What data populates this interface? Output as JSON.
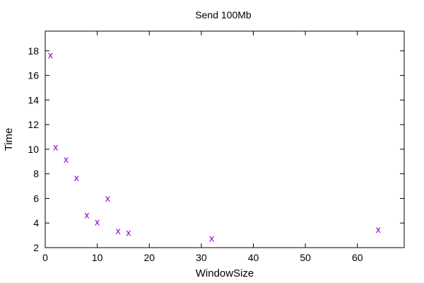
{
  "chart_data": {
    "type": "scatter",
    "title": "Send 100Mb",
    "xlabel": "WindowSize",
    "ylabel": "Time",
    "xlim": [
      0,
      69
    ],
    "ylim": [
      2,
      19.6
    ],
    "xticks": [
      0,
      10,
      20,
      30,
      40,
      50,
      60
    ],
    "yticks": [
      2,
      4,
      6,
      8,
      10,
      12,
      14,
      16,
      18
    ],
    "grid": false,
    "marker": "x",
    "series": [
      {
        "color": "#9400d3",
        "points": [
          {
            "x": 1,
            "y": 17.6
          },
          {
            "x": 2,
            "y": 10.1
          },
          {
            "x": 4,
            "y": 9.1
          },
          {
            "x": 6,
            "y": 7.6
          },
          {
            "x": 8,
            "y": 4.6
          },
          {
            "x": 10,
            "y": 4.0
          },
          {
            "x": 12,
            "y": 5.95
          },
          {
            "x": 14,
            "y": 3.3
          },
          {
            "x": 16,
            "y": 3.15
          },
          {
            "x": 32,
            "y": 2.7
          },
          {
            "x": 64,
            "y": 3.4
          }
        ]
      }
    ]
  }
}
